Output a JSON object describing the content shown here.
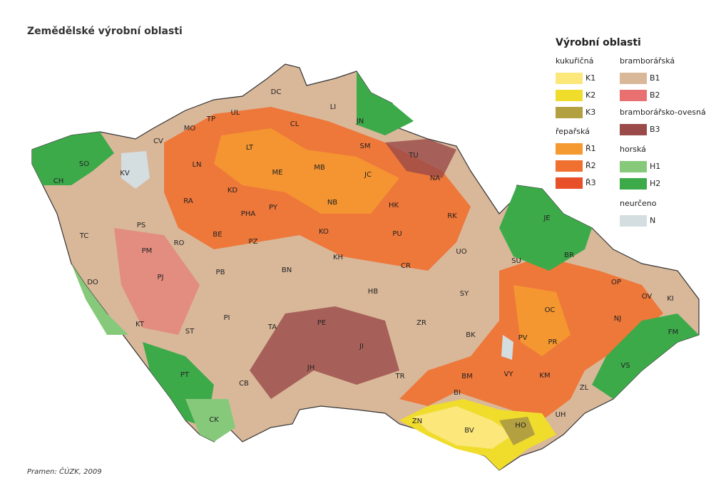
{
  "header": {
    "title": "Zemědělské výrobní oblasti"
  },
  "source": "Pramen: ČÚZK, 2009",
  "legend": {
    "title": "Výrobní oblasti",
    "groups": [
      {
        "name": "kukuřičná",
        "items": [
          {
            "code": "K1",
            "color": "#fbe77a"
          },
          {
            "code": "K2",
            "color": "#f0dc2a"
          },
          {
            "code": "K3",
            "color": "#b3a040"
          }
        ]
      },
      {
        "name": "řepařská",
        "items": [
          {
            "code": "Ř1",
            "color": "#f59a30"
          },
          {
            "code": "Ř2",
            "color": "#f07030"
          },
          {
            "code": "Ř3",
            "color": "#e8502a"
          }
        ]
      },
      {
        "name": "bramborářská",
        "items": [
          {
            "code": "B1",
            "color": "#d9b89a"
          },
          {
            "code": "B2",
            "color": "#e87070"
          }
        ]
      },
      {
        "name": "bramborářsko-ovesná",
        "items": [
          {
            "code": "B3",
            "color": "#9a4a48"
          }
        ]
      },
      {
        "name": "horská",
        "items": [
          {
            "code": "H1",
            "color": "#86c97a"
          },
          {
            "code": "H2",
            "color": "#3daa4a"
          }
        ]
      },
      {
        "name": "neurčeno",
        "items": [
          {
            "code": "N",
            "color": "#d4dde0"
          }
        ]
      }
    ]
  },
  "districts": [
    "DC",
    "LI",
    "JN",
    "UL",
    "TP",
    "MO",
    "CL",
    "CV",
    "LT",
    "SM",
    "TU",
    "SO",
    "KV",
    "CH",
    "LN",
    "ME",
    "MB",
    "JC",
    "NA",
    "KD",
    "RA",
    "PY",
    "PHA",
    "NB",
    "HK",
    "RK",
    "PS",
    "TC",
    "BE",
    "KO",
    "PU",
    "JE",
    "PZ",
    "RO",
    "PM",
    "KH",
    "UO",
    "SU",
    "BR",
    "PJ",
    "PB",
    "BN",
    "CR",
    "DO",
    "OP",
    "HB",
    "SY",
    "OV",
    "KI",
    "OC",
    "NJ",
    "PI",
    "TA",
    "PE",
    "ZR",
    "KT",
    "ST",
    "BK",
    "PV",
    "FM",
    "PR",
    "JI",
    "JH",
    "VY",
    "BM",
    "KM",
    "VS",
    "PT",
    "TR",
    "CB",
    "BI",
    "ZL",
    "UH",
    "CK",
    "ZN",
    "BV",
    "HO"
  ]
}
